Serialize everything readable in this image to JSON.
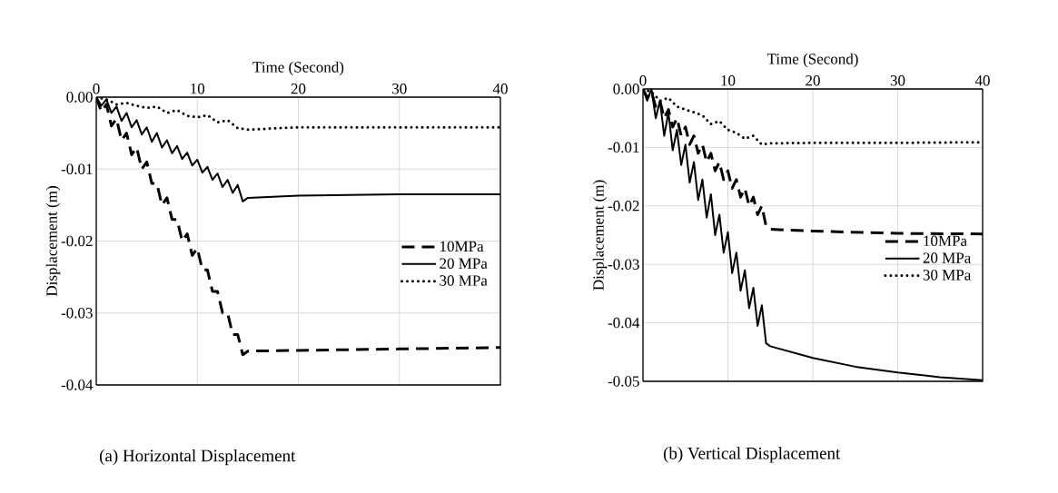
{
  "chart_data": [
    {
      "type": "line",
      "title": "(a) Horizontal Displacement",
      "xlabel": "Time (Second)",
      "ylabel": "Displacement (m)",
      "xlim": [
        0,
        40
      ],
      "xticks": [
        0,
        10,
        20,
        30,
        40
      ],
      "ylim": [
        -0.04,
        0
      ],
      "yticks": [
        -0.04,
        -0.03,
        -0.02,
        -0.01,
        {
          "value": 0,
          "label": "0.00"
        }
      ],
      "grid": true,
      "legend": "right",
      "marker": "none",
      "series": [
        {
          "name": "10MPa",
          "color": "#000000",
          "line_style": "dashed",
          "x": [
            0,
            0.5,
            1,
            1.5,
            2,
            2.5,
            3,
            3.5,
            4,
            4.5,
            5,
            5.5,
            6,
            6.5,
            7,
            7.5,
            8,
            8.5,
            9,
            9.5,
            10,
            10.5,
            11,
            11.5,
            12,
            12.5,
            13,
            13.5,
            14,
            14.5,
            15,
            20,
            30,
            40
          ],
          "values": [
            0,
            -0.002,
            -0.001,
            -0.004,
            -0.003,
            -0.006,
            -0.005,
            -0.008,
            -0.007,
            -0.01,
            -0.009,
            -0.012,
            -0.012,
            -0.015,
            -0.014,
            -0.017,
            -0.017,
            -0.02,
            -0.019,
            -0.022,
            -0.021,
            -0.024,
            -0.024,
            -0.027,
            -0.027,
            -0.03,
            -0.03,
            -0.033,
            -0.033,
            -0.0358,
            -0.0353,
            -0.0352,
            -0.035,
            -0.0348
          ]
        },
        {
          "name": "20 MPa",
          "color": "#000000",
          "line_style": "solid",
          "x": [
            0,
            0.5,
            1,
            1.5,
            2,
            2.5,
            3,
            3.5,
            4,
            4.5,
            5,
            5.5,
            6,
            6.5,
            7,
            7.5,
            8,
            8.5,
            9,
            9.5,
            10,
            10.5,
            11,
            11.5,
            12,
            12.5,
            13,
            13.5,
            14,
            14.5,
            15,
            20,
            30,
            40
          ],
          "values": [
            0,
            -0.0012,
            -0.0003,
            -0.0022,
            -0.0013,
            -0.0033,
            -0.0022,
            -0.0042,
            -0.0032,
            -0.0052,
            -0.0042,
            -0.0062,
            -0.005,
            -0.007,
            -0.006,
            -0.0078,
            -0.0068,
            -0.0086,
            -0.0077,
            -0.0095,
            -0.0087,
            -0.0105,
            -0.0097,
            -0.0115,
            -0.0106,
            -0.0125,
            -0.0115,
            -0.0133,
            -0.0122,
            -0.0145,
            -0.014,
            -0.0137,
            -0.0135,
            -0.0135
          ]
        },
        {
          "name": "30 MPa",
          "color": "#000000",
          "line_style": "dotted",
          "x": [
            0,
            1,
            2,
            3,
            4,
            5,
            6,
            7,
            8,
            9,
            10,
            11,
            12,
            13,
            14,
            15,
            20,
            30,
            40
          ],
          "values": [
            0,
            -0.0003,
            -0.001,
            -0.0008,
            -0.0012,
            -0.0015,
            -0.0013,
            -0.0022,
            -0.0018,
            -0.0026,
            -0.0028,
            -0.0025,
            -0.0035,
            -0.0032,
            -0.0043,
            -0.0045,
            -0.0042,
            -0.0042,
            -0.0042
          ]
        }
      ]
    },
    {
      "type": "line",
      "title": "(b) Vertical Displacement",
      "xlabel": "Time (Second)",
      "ylabel": "Displacement (m)",
      "xlim": [
        0,
        40
      ],
      "xticks": [
        0,
        10,
        20,
        30,
        40
      ],
      "ylim": [
        -0.05,
        0
      ],
      "yticks": [
        -0.05,
        -0.04,
        -0.03,
        -0.02,
        -0.01,
        {
          "value": 0,
          "label": "0.00"
        }
      ],
      "grid": true,
      "legend": "right",
      "marker": "none",
      "series": [
        {
          "name": "10MPa",
          "color": "#000000",
          "line_style": "dashed",
          "x": [
            0,
            0.5,
            1,
            1.5,
            2,
            2.5,
            3,
            3.5,
            4,
            4.5,
            5,
            5.5,
            6,
            6.5,
            7,
            7.5,
            8,
            8.5,
            9,
            9.5,
            10,
            10.5,
            11,
            11.5,
            12,
            12.5,
            13,
            13.5,
            14,
            14.5,
            15,
            20,
            30,
            40
          ],
          "values": [
            0,
            -0.0015,
            -0.0005,
            -0.003,
            -0.002,
            -0.005,
            -0.0035,
            -0.0065,
            -0.005,
            -0.008,
            -0.0065,
            -0.0095,
            -0.008,
            -0.011,
            -0.0095,
            -0.0125,
            -0.011,
            -0.014,
            -0.0125,
            -0.0155,
            -0.014,
            -0.017,
            -0.0155,
            -0.0185,
            -0.017,
            -0.02,
            -0.0185,
            -0.0215,
            -0.02,
            -0.0235,
            -0.024,
            -0.0243,
            -0.0247,
            -0.0248
          ]
        },
        {
          "name": "20 MPa",
          "color": "#000000",
          "line_style": "solid",
          "x": [
            0,
            0.5,
            1,
            1.5,
            2,
            2.5,
            3,
            3.5,
            4,
            4.5,
            5,
            5.5,
            6,
            6.5,
            7,
            7.5,
            8,
            8.5,
            9,
            9.5,
            10,
            10.5,
            11,
            11.5,
            12,
            12.5,
            13,
            13.5,
            14,
            14.5,
            15,
            20,
            25,
            30,
            35,
            40
          ],
          "values": [
            0,
            -0.002,
            0,
            -0.005,
            -0.002,
            -0.008,
            -0.004,
            -0.0105,
            -0.007,
            -0.013,
            -0.0095,
            -0.016,
            -0.0125,
            -0.019,
            -0.0155,
            -0.022,
            -0.018,
            -0.025,
            -0.0215,
            -0.028,
            -0.0245,
            -0.0315,
            -0.028,
            -0.0345,
            -0.031,
            -0.0375,
            -0.034,
            -0.0405,
            -0.037,
            -0.0435,
            -0.044,
            -0.046,
            -0.0475,
            -0.0485,
            -0.0493,
            -0.0498
          ]
        },
        {
          "name": "30 MPa",
          "color": "#000000",
          "line_style": "dotted",
          "x": [
            0,
            1,
            2,
            3,
            4,
            5,
            6,
            7,
            8,
            9,
            10,
            11,
            12,
            13,
            14,
            15,
            20,
            30,
            40
          ],
          "values": [
            0,
            -0.0005,
            -0.002,
            -0.0015,
            -0.003,
            -0.0035,
            -0.004,
            -0.0045,
            -0.006,
            -0.0055,
            -0.007,
            -0.0075,
            -0.0085,
            -0.008,
            -0.0095,
            -0.0093,
            -0.0092,
            -0.0092,
            -0.0091
          ]
        }
      ]
    }
  ]
}
